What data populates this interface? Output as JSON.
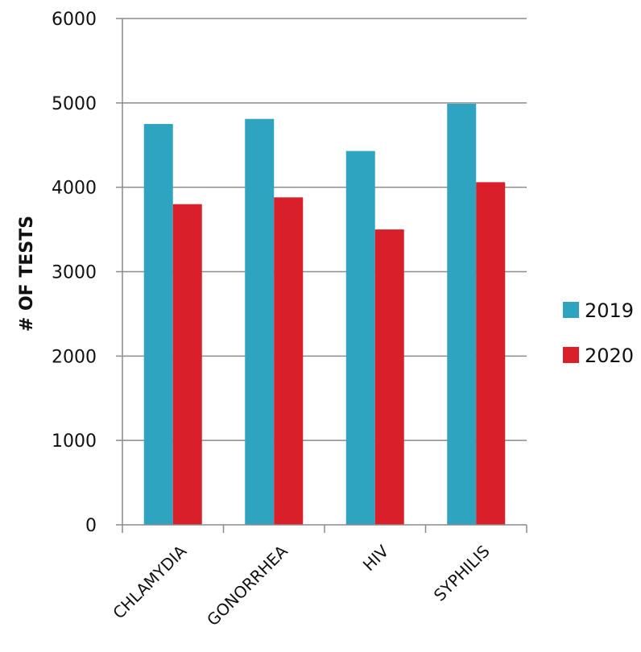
{
  "chart_data": {
    "type": "bar",
    "title": "",
    "xlabel": "",
    "ylabel": "# OF TESTS",
    "categories": [
      "CHLAMYDIA",
      "GONORRHEA",
      "HIV",
      "SYPHILIS"
    ],
    "series": [
      {
        "name": "2019",
        "values": [
          4750,
          4810,
          4430,
          4990
        ],
        "color": "#2ea4c1"
      },
      {
        "name": "2020",
        "values": [
          3800,
          3880,
          3500,
          4060
        ],
        "color": "#d91f2a"
      }
    ],
    "ylim": [
      0,
      6000
    ],
    "yticks": [
      0,
      1000,
      2000,
      3000,
      4000,
      5000,
      6000
    ],
    "grid": true,
    "legend_position": "right"
  }
}
